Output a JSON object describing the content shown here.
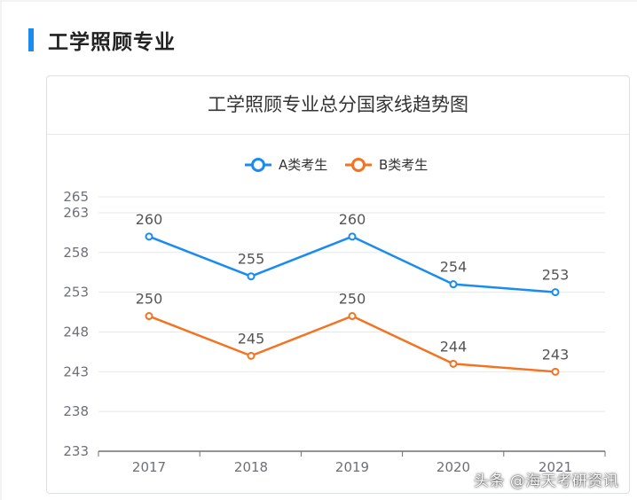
{
  "heading": "工学照顾专业",
  "watermark": "头条 @海天考研资讯",
  "colors": {
    "accent": "#1a8cf0",
    "seriesA": "#1a8cf0",
    "seriesB": "#f37321"
  },
  "chart_data": {
    "type": "line",
    "title": "工学照顾专业总分国家线趋势图",
    "categories": [
      "2017",
      "2018",
      "2019",
      "2020",
      "2021"
    ],
    "series": [
      {
        "name": "A类考生",
        "values": [
          260,
          255,
          260,
          254,
          253
        ]
      },
      {
        "name": "B类考生",
        "values": [
          250,
          245,
          250,
          244,
          243
        ]
      }
    ],
    "yticks": [
      233,
      238,
      243,
      248,
      253,
      258,
      263,
      265
    ],
    "ylim": [
      233,
      265
    ],
    "grid": true,
    "legend_position": "top"
  }
}
